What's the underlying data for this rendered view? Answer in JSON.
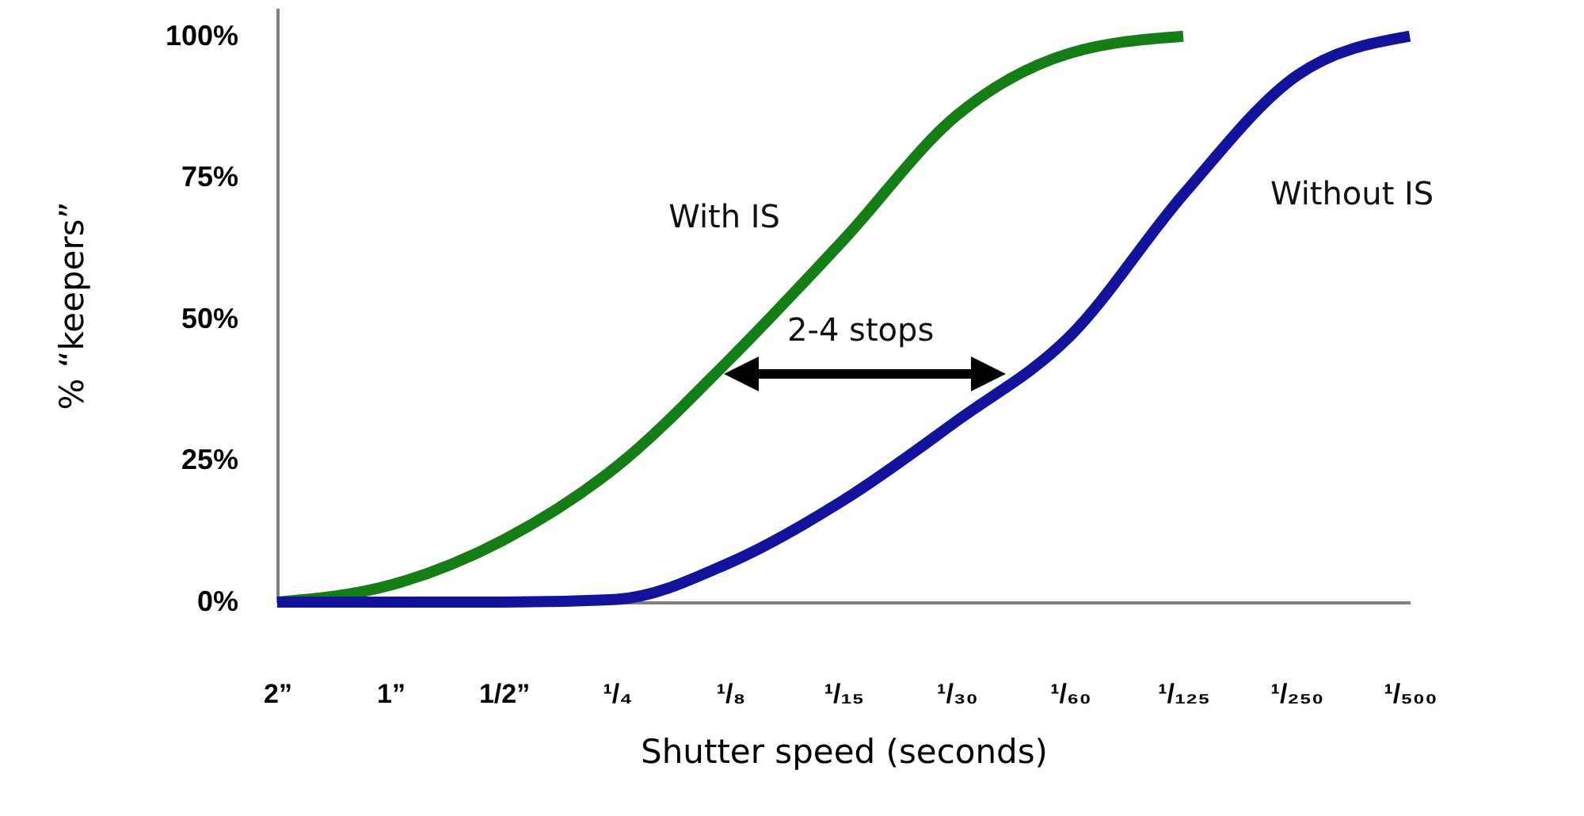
{
  "chart_data": {
    "type": "line",
    "xlabel": "Shutter speed (seconds)",
    "ylabel": "% “keepers”",
    "categories": [
      "2”",
      "1”",
      "1/2”",
      "¹/₄",
      "¹/₈",
      "¹/₁₅",
      "¹/₃₀",
      "¹/₆₀",
      "¹/₁₂₅",
      "¹/₂₅₀",
      "¹/₅₀₀"
    ],
    "ylim": [
      0,
      105
    ],
    "yticks": [
      {
        "value": 0,
        "label": "0%"
      },
      {
        "value": 25,
        "label": "25%"
      },
      {
        "value": 50,
        "label": "50%"
      },
      {
        "value": 75,
        "label": "75%"
      },
      {
        "value": 100,
        "label": "100%"
      }
    ],
    "grid": false,
    "marker": "none",
    "line_style": "solid",
    "series": [
      {
        "name": "With IS",
        "color": "#157d15",
        "values": [
          0,
          3,
          11,
          24,
          43,
          64,
          86,
          97,
          100,
          null,
          null
        ]
      },
      {
        "name": "Without IS",
        "color": "#12129a",
        "values": [
          0,
          0,
          0,
          0.5,
          7,
          18,
          32,
          47,
          72,
          93,
          100
        ]
      }
    ],
    "annotations": [
      "2-4 stops"
    ]
  }
}
